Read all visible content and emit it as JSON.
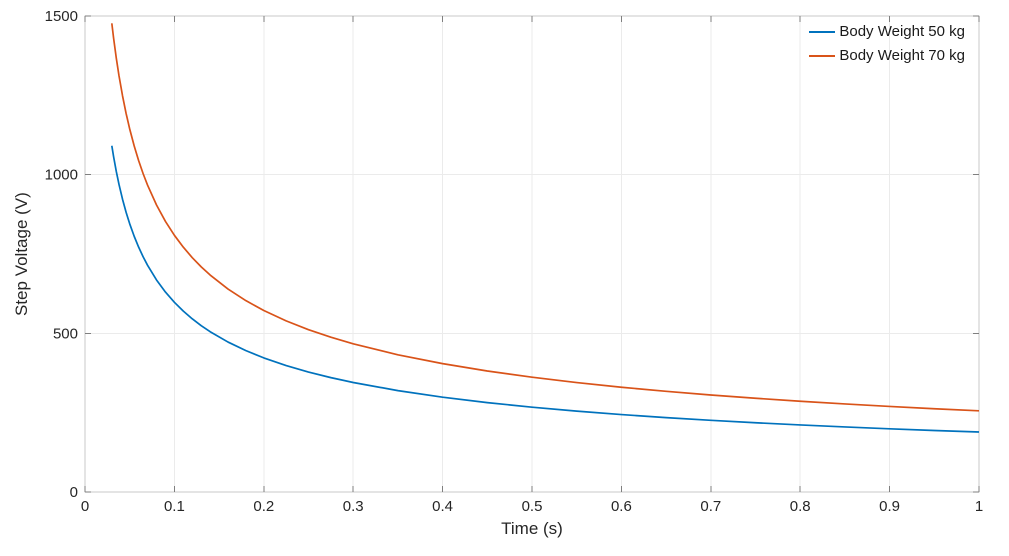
{
  "chart_data": {
    "type": "line",
    "title": "",
    "xlabel": "Time (s)",
    "ylabel": "Step Voltage (V)",
    "xlim": [
      0,
      1
    ],
    "ylim": [
      0,
      1500
    ],
    "xticks": [
      0,
      0.1,
      0.2,
      0.3,
      0.4,
      0.5,
      0.6,
      0.7,
      0.8,
      0.9,
      1
    ],
    "xtick_labels": [
      "0",
      "0.1",
      "0.2",
      "0.3",
      "0.4",
      "0.5",
      "0.6",
      "0.7",
      "0.8",
      "0.9",
      "1"
    ],
    "yticks": [
      0,
      500,
      1000,
      1500
    ],
    "ytick_labels": [
      "0",
      "500",
      "1000",
      "1500"
    ],
    "grid": true,
    "legend_position": "top-right-inside",
    "x": [
      0.03,
      0.032,
      0.035,
      0.038,
      0.042,
      0.046,
      0.05,
      0.055,
      0.06,
      0.065,
      0.07,
      0.08,
      0.09,
      0.1,
      0.11,
      0.12,
      0.13,
      0.14,
      0.16,
      0.18,
      0.2,
      0.225,
      0.25,
      0.275,
      0.3,
      0.35,
      0.4,
      0.45,
      0.5,
      0.55,
      0.6,
      0.65,
      0.7,
      0.75,
      0.8,
      0.85,
      0.9,
      0.95,
      1
    ],
    "series": [
      {
        "name": "Body Weight 50 kg",
        "color": "#0072BD",
        "values": [
          1091.2,
          1056.5,
          1010.2,
          969.5,
          922.2,
          881.2,
          845.2,
          805.9,
          771.6,
          741.3,
          714.4,
          668.2,
          630.0,
          597.7,
          569.9,
          545.6,
          524.2,
          505.1,
          472.5,
          445.5,
          422.6,
          398.4,
          378.0,
          360.4,
          345.1,
          319.5,
          298.8,
          281.7,
          267.3,
          254.8,
          244.0,
          234.4,
          225.9,
          218.2,
          211.3,
          205.0,
          199.2,
          193.9,
          189.0
        ]
      },
      {
        "name": "Body Weight 70 kg",
        "color": "#D95319",
        "values": [
          1476.9,
          1429.9,
          1367.3,
          1312.2,
          1248.2,
          1192.7,
          1143.9,
          1090.7,
          1044.3,
          1003.3,
          966.8,
          904.4,
          852.7,
          808.9,
          771.3,
          738.4,
          709.5,
          683.7,
          639.5,
          602.9,
          572.0,
          539.3,
          511.6,
          487.8,
          467.0,
          432.4,
          404.5,
          381.3,
          361.8,
          344.9,
          330.2,
          317.3,
          305.7,
          295.4,
          286.0,
          277.5,
          269.6,
          262.4,
          255.8
        ]
      }
    ]
  },
  "colors": {
    "background": "#ffffff",
    "axis_box": "#c9c9c9",
    "tick_mark": "#7f7f7f",
    "grid_line": "#ebebeb",
    "tick_label": "#262626"
  }
}
